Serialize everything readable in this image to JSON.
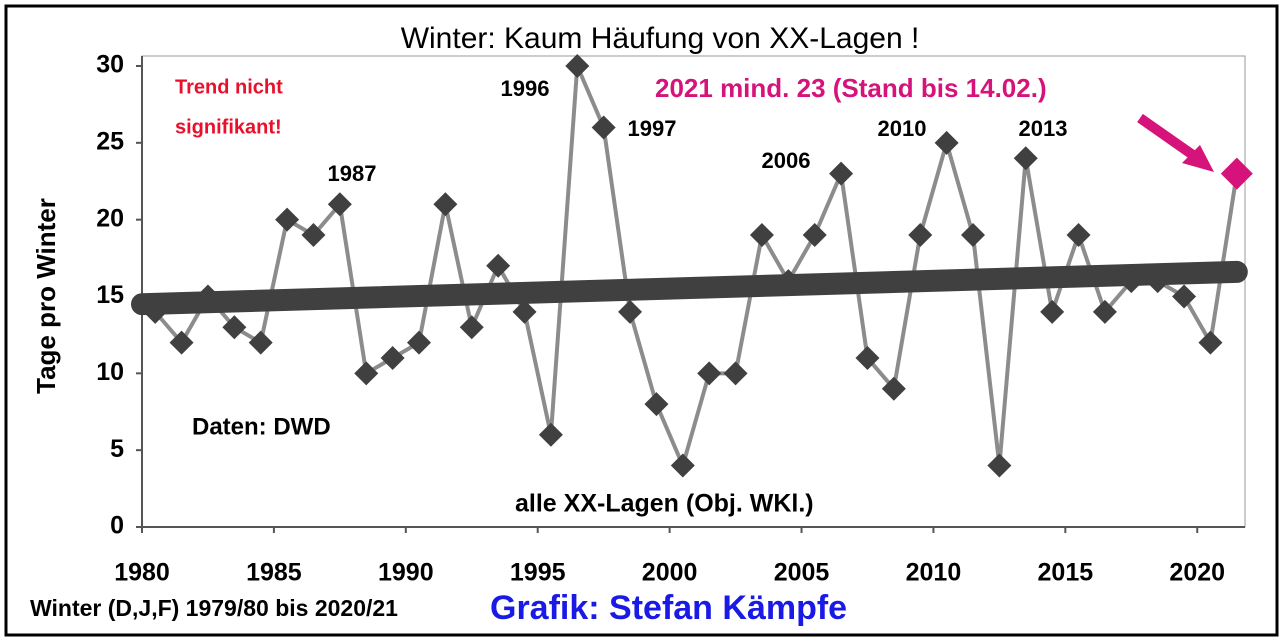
{
  "chart_data": {
    "type": "line",
    "title": "Winter: Kaum Häufung von XX-Lagen !",
    "y_label": "Tage pro Winter",
    "x_label": "Winter (D,J,F) 1979/80 bis 2020/21",
    "credit": "Grafik: Stefan Kämpfe",
    "source": "Daten: DWD",
    "trend_note": [
      "Trend nicht",
      "signifikant!"
    ],
    "year_labels": [
      "1987",
      "1996",
      "1997",
      "2006",
      "2010",
      "2013"
    ],
    "xlim": [
      1980,
      2022
    ],
    "xticks": [
      1980,
      1985,
      1990,
      1995,
      2000,
      2005,
      2010,
      2015,
      2020
    ],
    "ylim": [
      0,
      30
    ],
    "yticks": [
      0,
      5,
      10,
      15,
      20,
      25,
      30
    ],
    "series": [
      {
        "name": "alle XX-Lagen (Obj. WKl.)",
        "color": "#8c8c8c",
        "marker_color": "#404040",
        "x": [
          1980.5,
          1981.5,
          1982.5,
          1983.5,
          1984.5,
          1985.5,
          1986.5,
          1987.5,
          1988.5,
          1989.5,
          1990.5,
          1991.5,
          1992.5,
          1993.5,
          1994.5,
          1995.5,
          1996.5,
          1997.5,
          1998.5,
          1999.5,
          2000.5,
          2001.5,
          2002.5,
          2003.5,
          2004.5,
          2005.5,
          2006.5,
          2007.5,
          2008.5,
          2009.5,
          2010.5,
          2011.5,
          2012.5,
          2013.5,
          2014.5,
          2015.5,
          2016.5,
          2017.5,
          2018.5,
          2019.5,
          2020.5
        ],
        "values": [
          14,
          12,
          15,
          13,
          12,
          20,
          19,
          21,
          10,
          11,
          12,
          21,
          13,
          17,
          14,
          6,
          30,
          26,
          14,
          8,
          4,
          10,
          10,
          19,
          16,
          19,
          23,
          11,
          9,
          19,
          25,
          19,
          4,
          24,
          14,
          19,
          14,
          16,
          16,
          15,
          12
        ]
      },
      {
        "name": "2021 mind. 23 (Stand bis 14.02.)",
        "color": "#d6137a",
        "x": [
          2021.5
        ],
        "values": [
          23
        ]
      }
    ],
    "trend": {
      "color": "#404040",
      "x": [
        1980,
        2021.5
      ],
      "values": [
        14.5,
        16.6
      ]
    }
  }
}
